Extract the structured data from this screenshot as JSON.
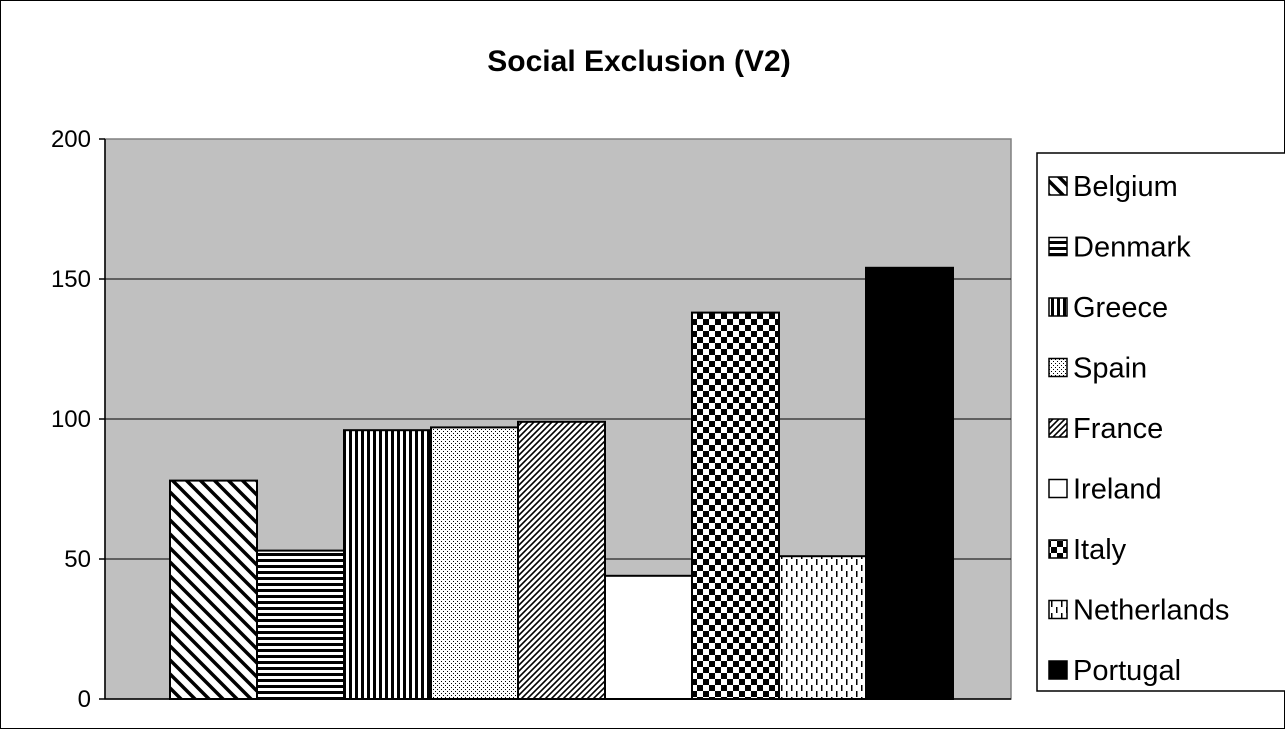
{
  "chart_data": {
    "type": "bar",
    "title": "Social Exclusion (V2)",
    "xlabel": "",
    "ylabel": "",
    "ylim": [
      0,
      200
    ],
    "yticks": [
      "0",
      "50",
      "100",
      "150",
      "200"
    ],
    "ytick_values": [
      0,
      50,
      100,
      150,
      200
    ],
    "grid": true,
    "plot_background": "#c0c0c0",
    "legend_position": "right",
    "series": [
      {
        "name": "Belgium",
        "value": 78,
        "pattern": "diag-down"
      },
      {
        "name": "Denmark",
        "value": 53,
        "pattern": "horizontal"
      },
      {
        "name": "Greece",
        "value": 96,
        "pattern": "vertical"
      },
      {
        "name": "Spain",
        "value": 97,
        "pattern": "dots"
      },
      {
        "name": "France",
        "value": 99,
        "pattern": "diag-up"
      },
      {
        "name": "Ireland",
        "value": 44,
        "pattern": "white"
      },
      {
        "name": "Italy",
        "value": 138,
        "pattern": "checker"
      },
      {
        "name": "Netherlands",
        "value": 51,
        "pattern": "dashed-vertical"
      },
      {
        "name": "Portugal",
        "value": 154,
        "pattern": "solid"
      }
    ]
  }
}
